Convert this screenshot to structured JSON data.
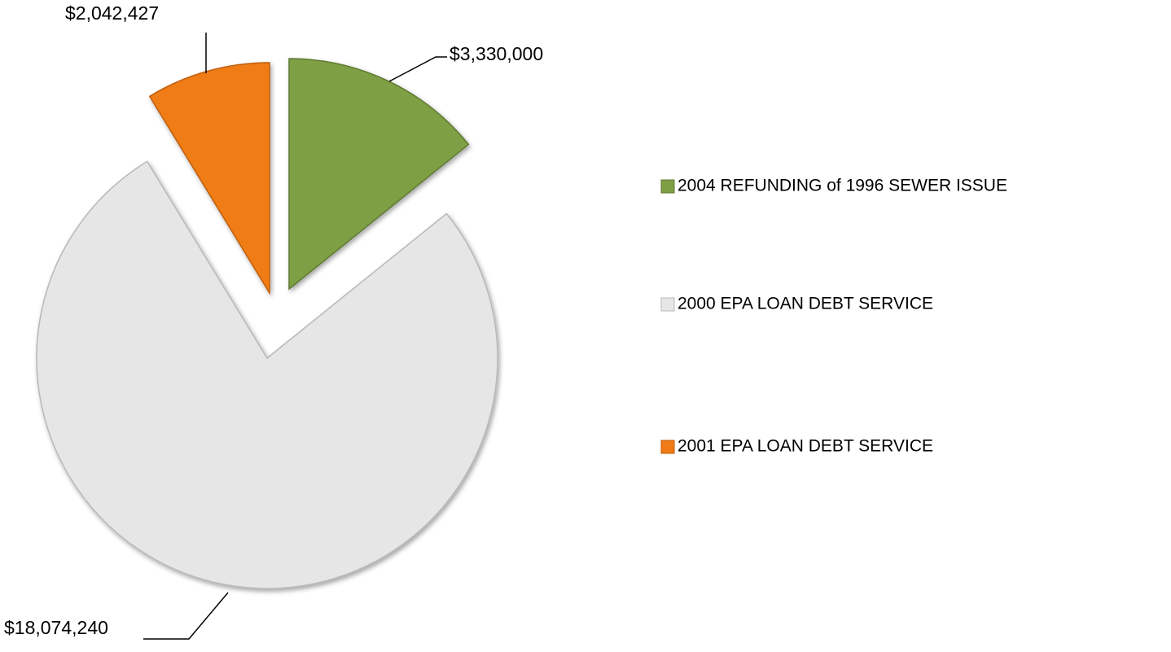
{
  "chart_data": {
    "type": "pie",
    "categories": [
      "2004 REFUNDING of 1996 SEWER ISSUE",
      "2000 EPA LOAN DEBT SERVICE",
      "2001 EPA LOAN DEBT SERVICE"
    ],
    "values": [
      3330000,
      18074240,
      2042427
    ],
    "value_labels": [
      "$3,330,000",
      "$18,074,240",
      "$2,042,427"
    ],
    "colors": [
      "#7f9f45",
      "#e6e6e6",
      "#f07b16"
    ],
    "legend": "right"
  }
}
